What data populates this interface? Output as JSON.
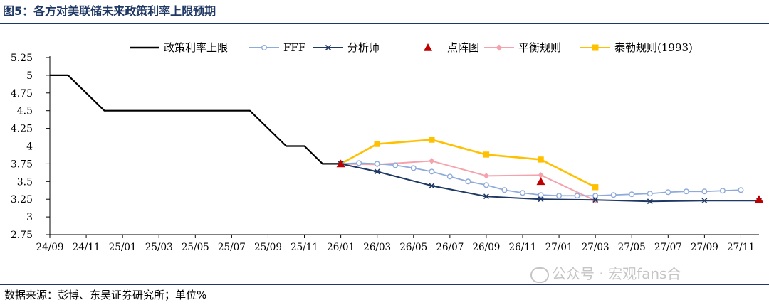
{
  "header": {
    "title": "图5：各方对美联储未来政策利率上限预期"
  },
  "footer": {
    "source": "数据来源：彭博、东吴证券研究所；单位%"
  },
  "watermark": {
    "text": "公众号 · 宏观fans合"
  },
  "chart_data": {
    "type": "line",
    "title": "图5：各方对美联储未来政策利率上限预期",
    "xlabel": "",
    "ylabel": "",
    "ylim": [
      2.75,
      5.25
    ],
    "yticks": [
      "2.75",
      "3",
      "3.25",
      "3.5",
      "3.75",
      "4",
      "4.25",
      "4.5",
      "4.75",
      "5",
      "5.25"
    ],
    "xlim": [
      0,
      39
    ],
    "x_tick_labels": [
      "24/09",
      "24/11",
      "25/01",
      "25/03",
      "25/05",
      "25/07",
      "25/09",
      "25/11",
      "26/01",
      "26/03",
      "26/05",
      "26/07",
      "26/09",
      "26/11",
      "27/01",
      "27/03",
      "27/05",
      "27/07",
      "27/09",
      "27/11"
    ],
    "x_tick_positions": [
      0,
      2,
      4,
      6,
      8,
      10,
      12,
      14,
      16,
      18,
      20,
      22,
      24,
      26,
      28,
      30,
      32,
      34,
      36,
      38
    ],
    "grid": false,
    "legend": "top",
    "series": [
      {
        "name": "政策利率上限",
        "color": "#000000",
        "marker": "none",
        "style": "step",
        "x": [
          0,
          1,
          1,
          3,
          3,
          11,
          11,
          13,
          13,
          14,
          14,
          15,
          15,
          16
        ],
        "y": [
          5.0,
          5.0,
          5.0,
          4.5,
          4.5,
          4.5,
          4.5,
          4.0,
          4.0,
          4.0,
          4.0,
          3.75,
          3.75,
          3.75
        ]
      },
      {
        "name": "FFF",
        "color": "#8eaadb",
        "marker": "circle",
        "x": [
          16,
          17,
          18,
          19,
          20,
          21,
          22,
          23,
          24,
          25,
          26,
          27,
          28,
          29,
          30,
          31,
          32,
          33,
          34,
          35,
          36,
          37,
          38
        ],
        "y": [
          3.75,
          3.76,
          3.75,
          3.73,
          3.69,
          3.64,
          3.57,
          3.5,
          3.45,
          3.38,
          3.34,
          3.31,
          3.3,
          3.3,
          3.3,
          3.31,
          3.32,
          3.33,
          3.35,
          3.36,
          3.36,
          3.37,
          3.38
        ]
      },
      {
        "name": "分析师",
        "color": "#1f3864",
        "marker": "star",
        "x": [
          16,
          18,
          21,
          24,
          27,
          30,
          33,
          36,
          39
        ],
        "y": [
          3.75,
          3.64,
          3.44,
          3.29,
          3.25,
          3.24,
          3.22,
          3.23,
          3.23
        ]
      },
      {
        "name": "点阵图",
        "color": "#c00000",
        "marker": "triangle",
        "line": false,
        "x": [
          16,
          27,
          39
        ],
        "y": [
          3.75,
          3.5,
          3.25
        ]
      },
      {
        "name": "平衡规则",
        "color": "#f4a3ac",
        "marker": "diamond",
        "x": [
          16,
          18,
          21,
          24,
          27,
          30
        ],
        "y": [
          3.75,
          3.74,
          3.79,
          3.58,
          3.59,
          3.23
        ]
      },
      {
        "name": "泰勒规则(1993)",
        "color": "#ffc000",
        "marker": "square",
        "x": [
          16,
          18,
          21,
          24,
          27,
          30
        ],
        "y": [
          3.75,
          4.03,
          4.09,
          3.88,
          3.81,
          3.42
        ]
      }
    ]
  }
}
